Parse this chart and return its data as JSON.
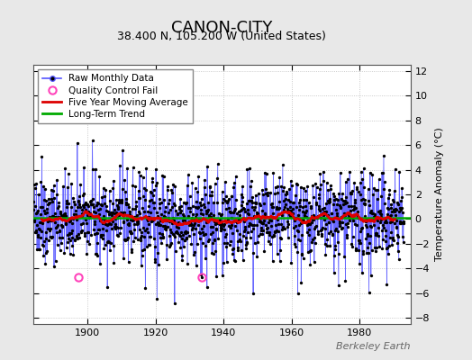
{
  "title": "CANON-CITY",
  "subtitle": "38.400 N, 105.200 W (United States)",
  "ylabel": "Temperature Anomaly (°C)",
  "watermark": "Berkeley Earth",
  "xlim": [
    1884,
    1995
  ],
  "ylim": [
    -8.5,
    12.5
  ],
  "yticks": [
    -8,
    -6,
    -4,
    -2,
    0,
    2,
    4,
    6,
    8,
    10,
    12
  ],
  "xticks": [
    1900,
    1920,
    1940,
    1960,
    1980
  ],
  "bg_color": "#e8e8e8",
  "plot_bg_color": "#ffffff",
  "raw_line_color": "#5555ff",
  "raw_marker_color": "#000000",
  "moving_avg_color": "#dd0000",
  "trend_color": "#00aa00",
  "qc_fail_color": "#ff44bb",
  "seed": 42,
  "start_year": 1884,
  "end_year": 1993,
  "qc_fail_points": [
    [
      1897.25,
      -4.7
    ],
    [
      1933.5,
      -4.7
    ]
  ],
  "trend_y": 0.1,
  "title_fontsize": 13,
  "subtitle_fontsize": 9,
  "ylabel_fontsize": 8,
  "tick_fontsize": 8,
  "legend_fontsize": 7.5,
  "watermark_fontsize": 8
}
